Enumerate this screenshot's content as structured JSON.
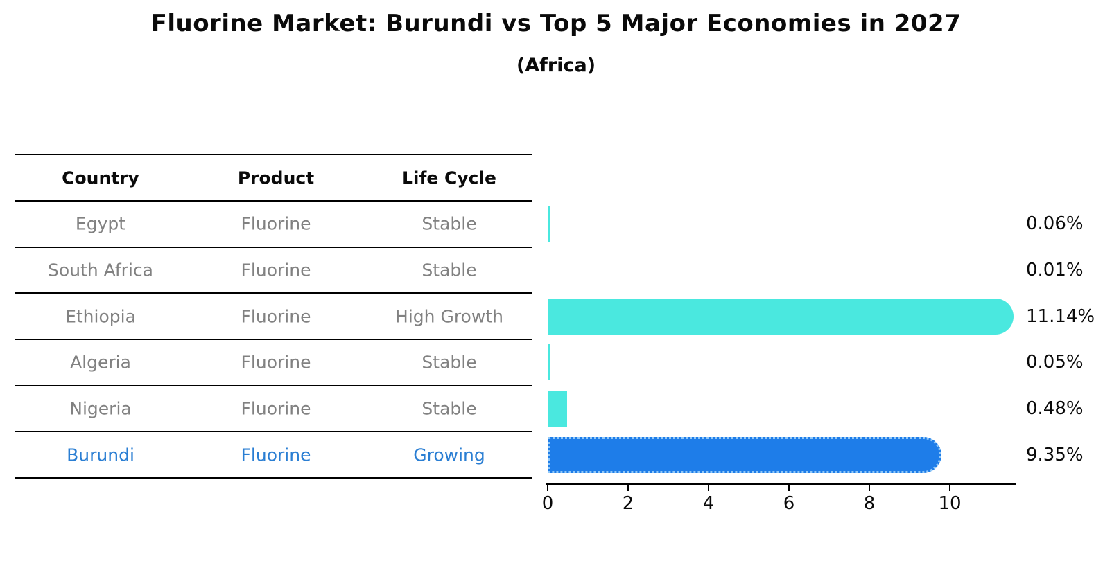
{
  "title": "Fluorine Market: Burundi vs Top 5 Major Economies in 2027",
  "subtitle": "(Africa)",
  "table": {
    "headers": [
      "Country",
      "Product",
      "Life Cycle"
    ],
    "rows": [
      {
        "country": "Egypt",
        "product": "Fluorine",
        "life_cycle": "Stable",
        "highlighted": false
      },
      {
        "country": "South Africa",
        "product": "Fluorine",
        "life_cycle": "Stable",
        "highlighted": false
      },
      {
        "country": "Ethiopia",
        "product": "Fluorine",
        "life_cycle": "High Growth",
        "highlighted": false
      },
      {
        "country": "Algeria",
        "product": "Fluorine",
        "life_cycle": "Stable",
        "highlighted": false
      },
      {
        "country": "Nigeria",
        "product": "Fluorine",
        "life_cycle": "Stable",
        "highlighted": false
      },
      {
        "country": "Burundi",
        "product": "Fluorine",
        "life_cycle": "Growing",
        "highlighted": true
      }
    ]
  },
  "chart_data": {
    "type": "bar",
    "orientation": "horizontal",
    "title": "Fluorine Market: Burundi vs Top 5 Major Economies in 2027",
    "subtitle": "(Africa)",
    "categories": [
      "Egypt",
      "South Africa",
      "Ethiopia",
      "Algeria",
      "Nigeria",
      "Burundi"
    ],
    "values": [
      0.06,
      0.01,
      11.14,
      0.05,
      0.48,
      9.35
    ],
    "value_labels": [
      "0.06%",
      "0.01%",
      "11.14%",
      "0.05%",
      "0.48%",
      "9.35%"
    ],
    "unit": "%",
    "x_ticks": [
      "0",
      "2",
      "4",
      "6",
      "8",
      "10"
    ],
    "xlim": [
      0,
      11.7
    ],
    "grid": false,
    "legend": "none",
    "highlight_index": 5
  },
  "colors": {
    "bar_default": "#4AE8DF",
    "bar_highlight": "#1E7DE9",
    "bar_highlight_edge": "#90C8F8",
    "table_text": "#818181",
    "highlight_text": "#2A7ED3",
    "header_text": "#0A0A0A",
    "axis_text": "#0A0A0A",
    "line": "#000000",
    "background": "#FFFFFF"
  }
}
